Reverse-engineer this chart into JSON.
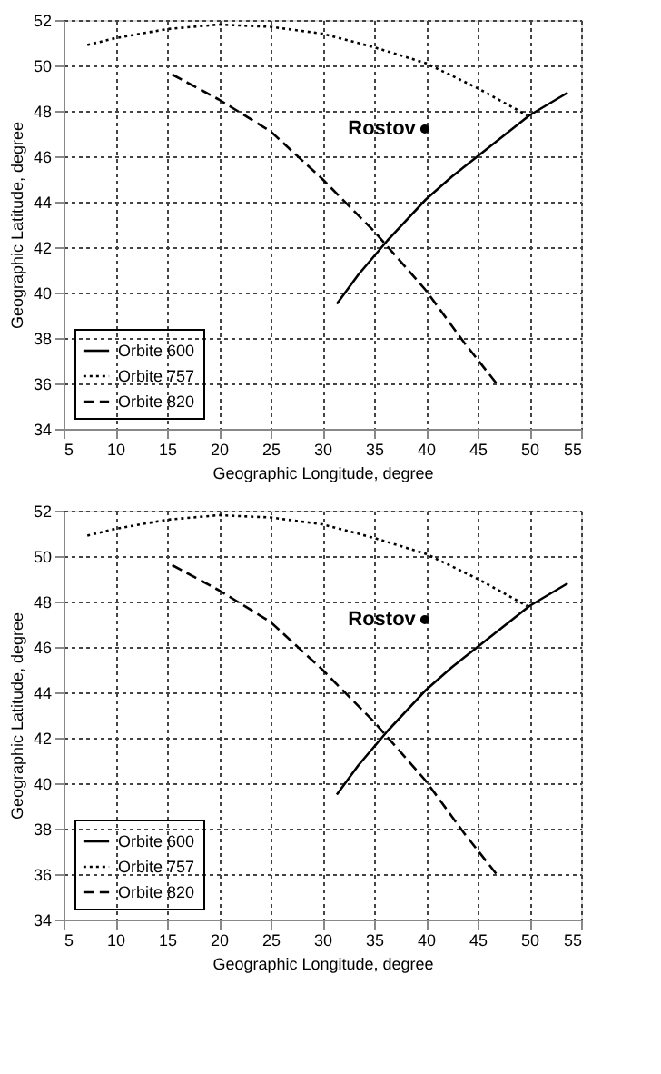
{
  "chart_data": [
    {
      "type": "line",
      "xlabel": "Geographic Longitude, degree",
      "ylabel": "Geographic Latitude, degree",
      "xlim": [
        5,
        55
      ],
      "ylim": [
        34,
        52
      ],
      "xticks": [
        5,
        10,
        15,
        20,
        25,
        30,
        35,
        40,
        45,
        50,
        55
      ],
      "yticks": [
        34,
        36,
        38,
        40,
        42,
        44,
        46,
        48,
        50,
        52
      ],
      "grid": true,
      "legend": "bottom left",
      "series": [
        {
          "name": "Orbite 600",
          "color": "#000000",
          "line_style": "solid",
          "x": [
            31.4,
            33.5,
            36.3,
            40,
            42.5,
            45,
            47.5,
            50,
            53.7
          ],
          "values": [
            39.5,
            40.8,
            42.3,
            44.1,
            45.1,
            46.0,
            46.9,
            47.8,
            48.8
          ]
        },
        {
          "name": "Orbite 757",
          "color": "#000000",
          "line_style": "dotted",
          "x": [
            7.3,
            10,
            15,
            20,
            25,
            30,
            35,
            40,
            45,
            49.8
          ],
          "values": [
            50.9,
            51.2,
            51.6,
            51.8,
            51.7,
            51.4,
            50.8,
            50.1,
            49.0,
            47.8
          ]
        },
        {
          "name": "Orbite 820",
          "color": "#000000",
          "line_style": "dashed",
          "x": [
            15.5,
            20,
            25,
            30,
            35,
            40,
            43.7,
            47
          ],
          "values": [
            49.6,
            48.5,
            47.1,
            45.0,
            42.7,
            40.1,
            37.8,
            35.9
          ]
        },
        {
          "name": "Rostov",
          "type": "scatter",
          "color": "#000000",
          "x": [
            39.9
          ],
          "values": [
            47.2
          ]
        }
      ]
    },
    {
      "type": "line",
      "xlabel": "Geographic Longitude, degree",
      "ylabel": "Geographic Latitude, degree",
      "xlim": [
        5,
        55
      ],
      "ylim": [
        34,
        52
      ],
      "xticks": [
        5,
        10,
        15,
        20,
        25,
        30,
        35,
        40,
        45,
        50,
        55
      ],
      "yticks": [
        34,
        36,
        38,
        40,
        42,
        44,
        46,
        48,
        50,
        52
      ],
      "grid": true,
      "legend": "bottom left",
      "series": [
        {
          "name": "Orbite 600",
          "color": "#000000",
          "line_style": "solid",
          "x": [
            31.4,
            33.5,
            36.3,
            40,
            42.5,
            45,
            47.5,
            50,
            53.7
          ],
          "values": [
            39.5,
            40.8,
            42.3,
            44.1,
            45.1,
            46.0,
            46.9,
            47.8,
            48.8
          ]
        },
        {
          "name": "Orbite 757",
          "color": "#000000",
          "line_style": "dotted",
          "x": [
            7.3,
            10,
            15,
            20,
            25,
            30,
            35,
            40,
            45,
            49.8
          ],
          "values": [
            50.9,
            51.2,
            51.6,
            51.8,
            51.7,
            51.4,
            50.8,
            50.1,
            49.0,
            47.8
          ]
        },
        {
          "name": "Orbite 820",
          "color": "#000000",
          "line_style": "dashed",
          "x": [
            15.5,
            20,
            25,
            30,
            35,
            40,
            43.7,
            47
          ],
          "values": [
            49.6,
            48.5,
            47.1,
            45.0,
            42.7,
            40.1,
            37.8,
            35.9
          ]
        },
        {
          "name": "Rostov",
          "type": "scatter",
          "color": "#000000",
          "x": [
            39.9
          ],
          "values": [
            47.2
          ]
        }
      ]
    }
  ]
}
